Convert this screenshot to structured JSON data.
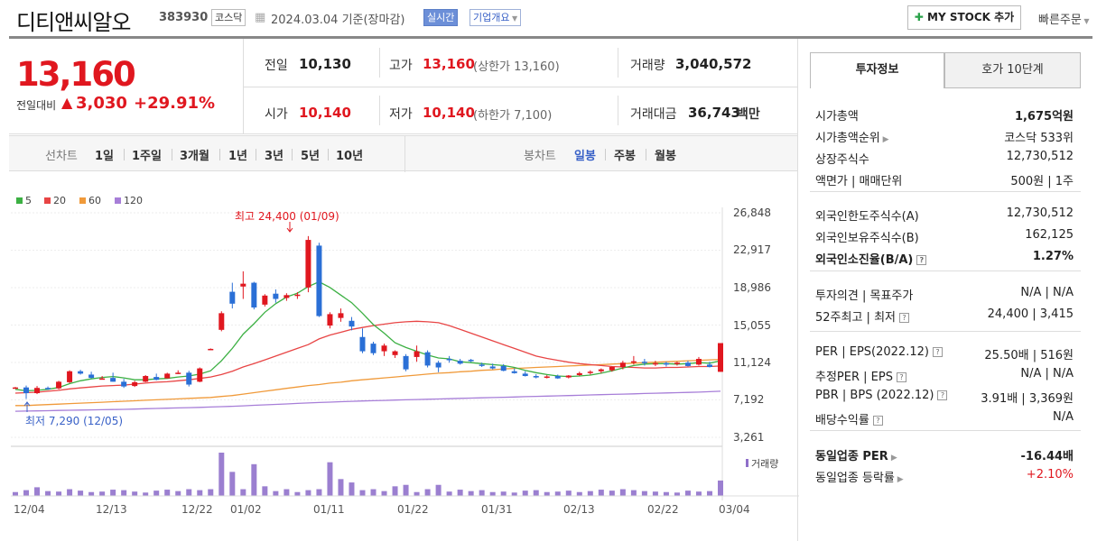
{
  "header": {
    "company": "디티앤씨알오",
    "code": "383930",
    "market_badge": "코스닥",
    "date_text": "2024.03.04  기준(장마감)",
    "realtime_badge": "실시간",
    "info_badge": "기업개요",
    "mystock_label": "MY STOCK 추가",
    "quick_order": "빠른주문"
  },
  "price": {
    "current": "13,160",
    "change_label": "전일대비",
    "change_value": "3,030",
    "change_pct": "+29.91%"
  },
  "summary": {
    "prev_label": "전일",
    "prev": "10,130",
    "high_label": "고가",
    "high": "13,160",
    "upper_limit": "(상한가 13,160)",
    "volume_label": "거래량",
    "volume": "3,040,572",
    "open_label": "시가",
    "open": "10,140",
    "low_label": "저가",
    "low": "10,140",
    "lower_limit": "(하한가 7,100)",
    "amount_label": "거래대금",
    "amount": "36,743",
    "amount_unit": "백만"
  },
  "chart_tabs": {
    "line_label": "선차트",
    "periods": [
      "1일",
      "1주일",
      "3개월",
      "1년",
      "3년",
      "5년",
      "10년"
    ],
    "candle_label": "봉차트",
    "candle_periods": [
      "일봉",
      "주봉",
      "월봉"
    ],
    "selected_candle": "일봉"
  },
  "chart_data": {
    "type": "candlestick",
    "legend": [
      {
        "name": "5",
        "color": "#3cb043"
      },
      {
        "name": "20",
        "color": "#e84545"
      },
      {
        "name": "60",
        "color": "#f09a3a"
      },
      {
        "name": "120",
        "color": "#a77ed8"
      }
    ],
    "y_ticks": [
      "26,848",
      "22,917",
      "18,986",
      "15,055",
      "11,124",
      "7,192",
      "3,261"
    ],
    "y_range": [
      3261,
      26848
    ],
    "x_ticks": [
      "12/04",
      "12/13",
      "12/22",
      "01/02",
      "01/11",
      "01/22",
      "01/31",
      "02/13",
      "02/22",
      "03/04"
    ],
    "max_annotation": "최고 24,400 (01/09)",
    "min_annotation": "최저 7,290 (12/05)",
    "volume_label": "거래량",
    "candles": [
      [
        8450,
        8550,
        8350,
        8500
      ],
      [
        8500,
        8700,
        7290,
        7900
      ],
      [
        7900,
        8650,
        7800,
        8450
      ],
      [
        8450,
        8600,
        8250,
        8350
      ],
      [
        8400,
        9200,
        8300,
        9100
      ],
      [
        9050,
        10300,
        8950,
        10200
      ],
      [
        10200,
        10350,
        9850,
        9950
      ],
      [
        9850,
        10150,
        9450,
        9500
      ],
      [
        9450,
        9700,
        9400,
        9450
      ],
      [
        9500,
        10050,
        9100,
        9100
      ],
      [
        9100,
        9400,
        8450,
        8600
      ],
      [
        8650,
        9200,
        8550,
        9050
      ],
      [
        9100,
        9800,
        9050,
        9700
      ],
      [
        9600,
        9950,
        9250,
        9300
      ],
      [
        9450,
        10050,
        9450,
        9950
      ],
      [
        10000,
        10300,
        9900,
        10050
      ],
      [
        10050,
        10250,
        8600,
        8800
      ],
      [
        9100,
        10600,
        9050,
        10500
      ],
      [
        12500,
        12600,
        12450,
        12550
      ],
      [
        14550,
        16500,
        14400,
        16300
      ],
      [
        18550,
        19500,
        16800,
        17300
      ],
      [
        19100,
        20700,
        17800,
        19400
      ],
      [
        19500,
        19600,
        16700,
        16900
      ],
      [
        17200,
        18300,
        17000,
        18150
      ],
      [
        18350,
        18800,
        17400,
        17800
      ],
      [
        17900,
        18400,
        17600,
        18200
      ],
      [
        18200,
        18500,
        17800,
        18250
      ],
      [
        19000,
        24400,
        18500,
        24000
      ],
      [
        23400,
        23700,
        15900,
        16000
      ],
      [
        15000,
        16400,
        14700,
        16200
      ],
      [
        15800,
        16800,
        15400,
        16300
      ],
      [
        15500,
        15900,
        14500,
        14900
      ],
      [
        13800,
        14700,
        12100,
        12300
      ],
      [
        13100,
        13300,
        11900,
        12100
      ],
      [
        12300,
        13100,
        11800,
        12900
      ],
      [
        11900,
        12400,
        11600,
        12300
      ],
      [
        11800,
        12000,
        10200,
        10400
      ],
      [
        11700,
        12900,
        11200,
        12300
      ],
      [
        12200,
        12400,
        10600,
        10800
      ],
      [
        11100,
        11300,
        10100,
        10600
      ],
      [
        11500,
        11800,
        11100,
        11400
      ],
      [
        11300,
        11500,
        10900,
        11000
      ],
      [
        11400,
        11500,
        11150,
        11300
      ],
      [
        10900,
        11100,
        10650,
        10800
      ],
      [
        10700,
        11000,
        10400,
        10500
      ],
      [
        10750,
        10950,
        10200,
        10250
      ],
      [
        10200,
        10500,
        9950,
        10000
      ],
      [
        9950,
        10200,
        9650,
        9700
      ],
      [
        9700,
        9900,
        9450,
        9550
      ],
      [
        9600,
        9800,
        9450,
        9650
      ],
      [
        9700,
        9850,
        9400,
        9450
      ],
      [
        9550,
        9800,
        9450,
        9750
      ],
      [
        9800,
        10150,
        9700,
        10000
      ],
      [
        10050,
        10300,
        9850,
        10150
      ],
      [
        10200,
        10500,
        10000,
        10400
      ],
      [
        10300,
        10700,
        10150,
        10650
      ],
      [
        10650,
        11300,
        10400,
        11100
      ],
      [
        11100,
        11800,
        10900,
        11250
      ],
      [
        11200,
        11500,
        10800,
        11100
      ],
      [
        11000,
        11300,
        10750,
        11050
      ],
      [
        11050,
        11200,
        10700,
        10900
      ],
      [
        11000,
        11200,
        10800,
        11100
      ],
      [
        11100,
        11300,
        10700,
        10750
      ],
      [
        10900,
        11700,
        10800,
        11500
      ],
      [
        10900,
        11200,
        10600,
        10650
      ],
      [
        10140,
        13160,
        10140,
        13160
      ]
    ],
    "volumes": [
      8,
      12,
      18,
      10,
      9,
      14,
      11,
      8,
      9,
      13,
      12,
      9,
      7,
      11,
      13,
      10,
      14,
      12,
      14,
      90,
      50,
      14,
      66,
      20,
      10,
      14,
      8,
      12,
      14,
      70,
      35,
      28,
      12,
      14,
      10,
      20,
      23,
      8,
      14,
      23,
      9,
      13,
      10,
      12,
      8,
      9,
      7,
      11,
      12,
      8,
      9,
      11,
      8,
      10,
      13,
      11,
      14,
      12,
      10,
      9,
      8,
      7,
      11,
      9,
      10,
      32
    ],
    "ma5": [
      8300,
      8150,
      8200,
      8300,
      8500,
      8900,
      9200,
      9400,
      9550,
      9650,
      9500,
      9300,
      9300,
      9400,
      9450,
      9600,
      9700,
      9900,
      10250,
      11300,
      12600,
      14100,
      15200,
      16400,
      17300,
      18000,
      18400,
      19100,
      19600,
      19000,
      18200,
      17400,
      16300,
      15100,
      14200,
      13200,
      12700,
      12300,
      11900,
      11600,
      11500,
      11200,
      11100,
      11000,
      10900,
      10800,
      10600,
      10300,
      10050,
      9850,
      9700,
      9650,
      9700,
      9800,
      10000,
      10250,
      10550,
      10800,
      10950,
      11000,
      11000,
      10950,
      11000,
      11100,
      11050,
      11300
    ],
    "ma20": [
      7900,
      7950,
      8000,
      8100,
      8200,
      8350,
      8450,
      8550,
      8650,
      8700,
      8750,
      8850,
      8950,
      9050,
      9100,
      9200,
      9300,
      9450,
      9600,
      9850,
      10200,
      10650,
      11000,
      11400,
      11800,
      12200,
      12600,
      13000,
      13600,
      14000,
      14300,
      14600,
      14800,
      15000,
      15150,
      15300,
      15400,
      15450,
      15400,
      15300,
      15000,
      14600,
      14200,
      13800,
      13400,
      13000,
      12600,
      12200,
      11800,
      11550,
      11350,
      11150,
      11000,
      10900,
      10800,
      10700,
      10650,
      10600,
      10550,
      10550,
      10600,
      10600,
      10650,
      10700,
      10700,
      10750
    ],
    "ma60": [
      6600,
      6600,
      6650,
      6700,
      6750,
      6800,
      6850,
      6900,
      6950,
      7000,
      7050,
      7100,
      7150,
      7200,
      7250,
      7300,
      7350,
      7400,
      7450,
      7550,
      7650,
      7800,
      7950,
      8100,
      8250,
      8400,
      8550,
      8700,
      8800,
      8950,
      9050,
      9200,
      9300,
      9400,
      9500,
      9600,
      9700,
      9800,
      9900,
      10000,
      10050,
      10150,
      10200,
      10300,
      10350,
      10450,
      10500,
      10550,
      10600,
      10650,
      10700,
      10750,
      10800,
      10850,
      10900,
      10950,
      11000,
      11050,
      11100,
      11150,
      11200,
      11250,
      11300,
      11350,
      11400,
      11450
    ],
    "ma120": [
      6000,
      6020,
      6040,
      6060,
      6080,
      6100,
      6120,
      6140,
      6160,
      6180,
      6200,
      6230,
      6260,
      6290,
      6320,
      6350,
      6380,
      6410,
      6440,
      6480,
      6520,
      6570,
      6620,
      6670,
      6720,
      6770,
      6820,
      6870,
      6920,
      6960,
      7000,
      7040,
      7080,
      7110,
      7140,
      7170,
      7200,
      7230,
      7260,
      7290,
      7320,
      7350,
      7380,
      7410,
      7440,
      7470,
      7500,
      7530,
      7560,
      7590,
      7620,
      7650,
      7680,
      7710,
      7740,
      7770,
      7800,
      7830,
      7860,
      7890,
      7920,
      7950,
      7980,
      8010,
      8050,
      8100
    ]
  },
  "right_panel": {
    "tab_invest": "투자정보",
    "tab_hoga": "호가 10단계",
    "group1": [
      {
        "k": "시가총액",
        "v": "1,675억원",
        "bold": true
      },
      {
        "k": "시가총액순위",
        "v": "코스닥 533위",
        "arrow": true
      },
      {
        "k": "상장주식수",
        "v": "12,730,512"
      },
      {
        "k": "액면가 | 매매단위",
        "v": "500원 | 1주"
      }
    ],
    "group2": [
      {
        "k": "외국인한도주식수(A)",
        "v": "12,730,512"
      },
      {
        "k": "외국인보유주식수(B)",
        "v": "162,125"
      },
      {
        "k": "외국인소진율(B/A)",
        "v": "1.27%",
        "bold": true,
        "q": true
      }
    ],
    "group3": [
      {
        "k": "투자의견 | 목표주가",
        "v": "N/A | N/A"
      },
      {
        "k": "52주최고 | 최저",
        "v": "24,400 | 3,415",
        "q": true
      }
    ],
    "group4": [
      {
        "k": "PER | EPS(2022.12)",
        "v": "25.50배 | 516원",
        "q": true
      },
      {
        "k": "추정PER | EPS",
        "v": "N/A | N/A",
        "q": true
      },
      {
        "k": "PBR | BPS (2022.12)",
        "v": "3.91배 | 3,369원",
        "q": true
      },
      {
        "k": "배당수익률",
        "v": "N/A",
        "q": true
      }
    ],
    "group5": [
      {
        "k": "동일업종 PER",
        "v": "-16.44배",
        "bold": true,
        "arrow": true
      },
      {
        "k": "동일업종 등락률",
        "v": "+2.10%",
        "arrow": true,
        "red": true
      }
    ]
  }
}
